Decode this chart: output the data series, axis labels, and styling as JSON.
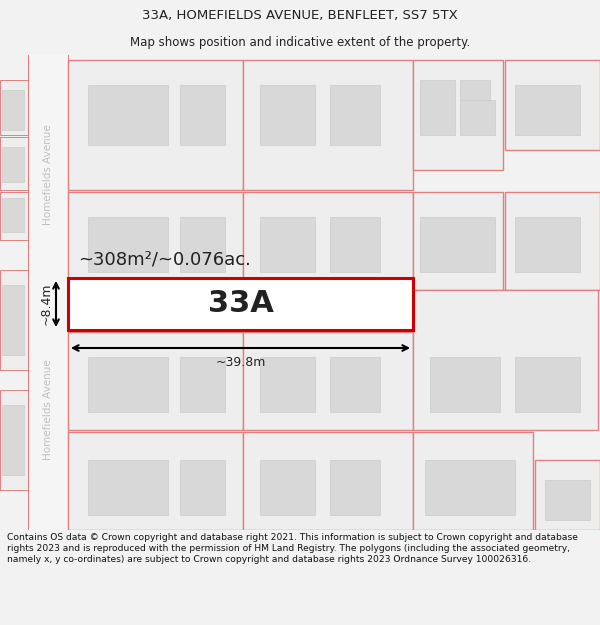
{
  "title_line1": "33A, HOMEFIELDS AVENUE, BENFLEET, SS7 5TX",
  "title_line2": "Map shows position and indicative extent of the property.",
  "footer_text": "Contains OS data © Crown copyright and database right 2021. This information is subject to Crown copyright and database rights 2023 and is reproduced with the permission of HM Land Registry. The polygons (including the associated geometry, namely x, y co-ordinates) are subject to Crown copyright and database rights 2023 Ordnance Survey 100026316.",
  "bg_color": "#f2f2f2",
  "map_bg": "#f8f8f8",
  "plot_edge": "#e08080",
  "highlight_edge": "#cc0000",
  "building_fill": "#d8d8d8",
  "building_edge": "#cccccc",
  "road_label_color": "#c0c0c0",
  "label_33a": "33A",
  "area_label": "~308m²/~0.076ac.",
  "width_label": "~39.8m",
  "height_label": "~8.4m"
}
